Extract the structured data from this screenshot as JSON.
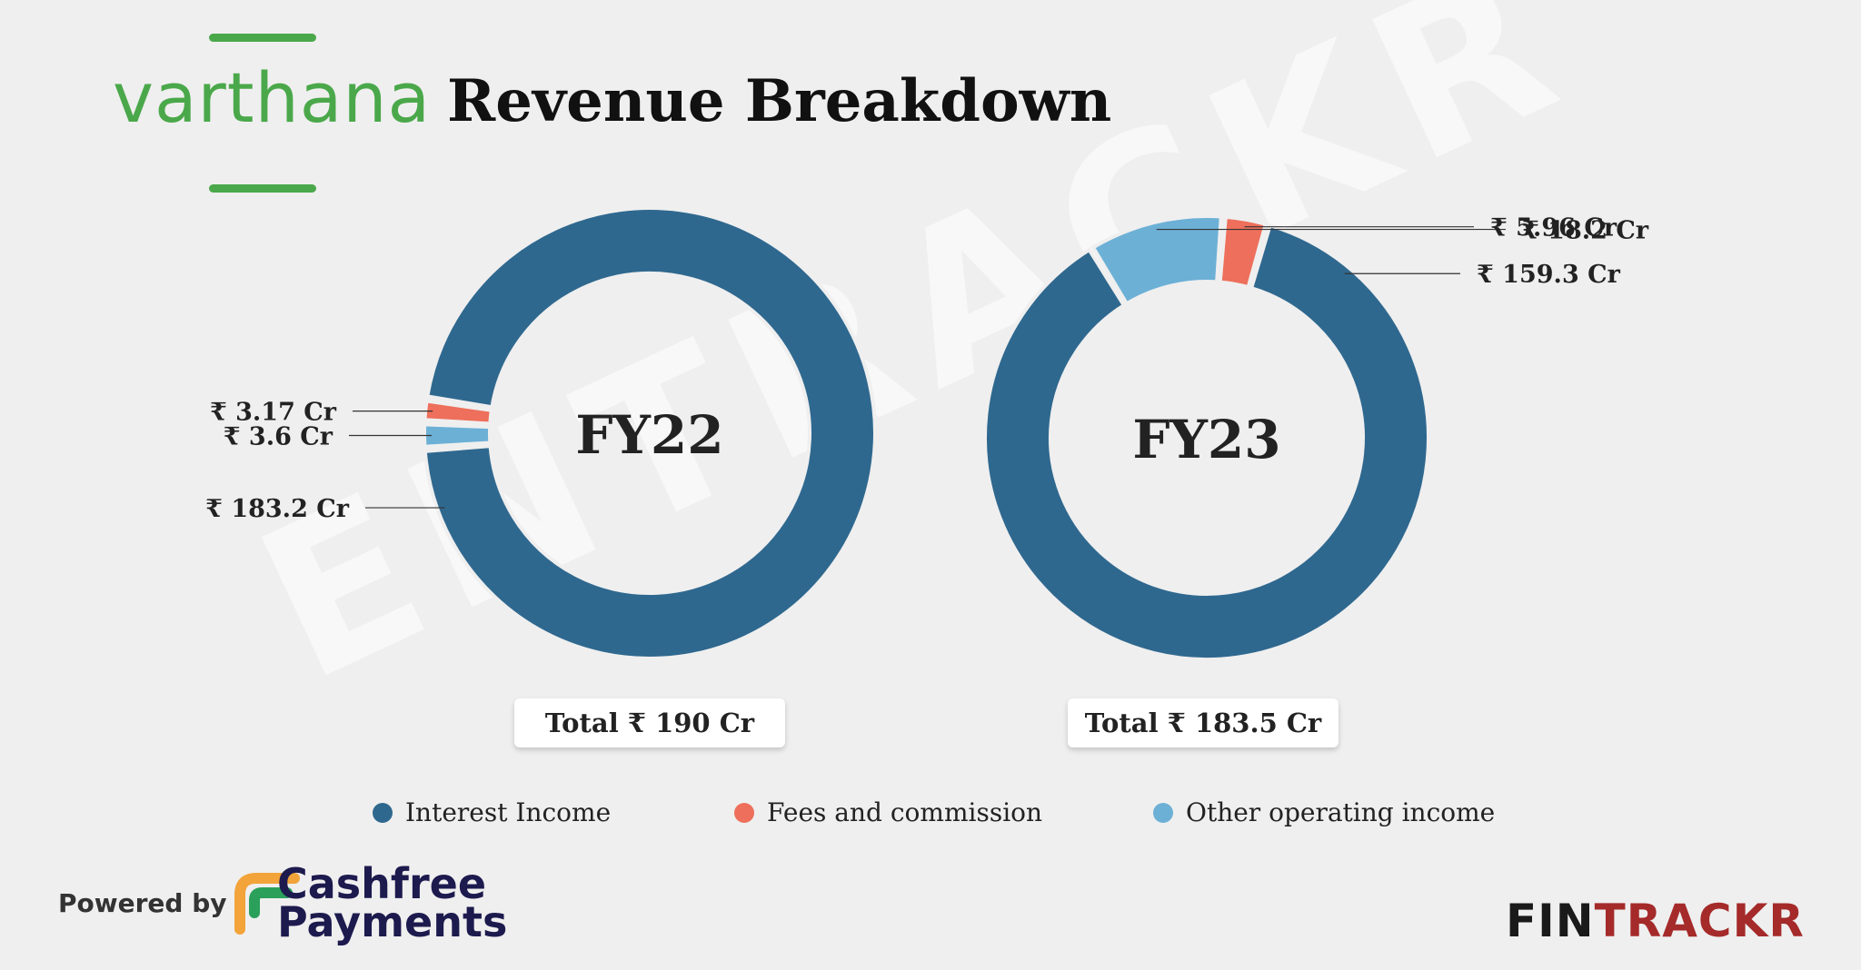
{
  "brand": {
    "name": "varthana",
    "color": "#4aa84a"
  },
  "title": "Revenue Breakdown",
  "watermark": "ENTRACKR",
  "colors": {
    "interest": "#2f688f",
    "fees": "#ee6f5b",
    "other": "#6cb0d6"
  },
  "chart_data": [
    {
      "type": "pie",
      "center_label": "FY22",
      "total_label": "Total ₹ 190 Cr",
      "slices": [
        {
          "name": "Interest Income",
          "value": 183.2,
          "label": "₹ 183.2 Cr",
          "color": "#2f688f"
        },
        {
          "name": "Other operating income",
          "value": 3.6,
          "label": "₹ 3.6 Cr",
          "color": "#6cb0d6"
        },
        {
          "name": "Fees and commission",
          "value": 3.17,
          "label": "₹ 3.17 Cr",
          "color": "#ee6f5b"
        }
      ]
    },
    {
      "type": "pie",
      "center_label": "FY23",
      "total_label": "Total ₹ 183.5 Cr",
      "slices": [
        {
          "name": "Interest Income",
          "value": 159.3,
          "label": "₹ 159.3 Cr",
          "color": "#2f688f"
        },
        {
          "name": "Other operating income",
          "value": 18.2,
          "label": "₹ 18.2 Cr",
          "color": "#6cb0d6"
        },
        {
          "name": "Fees and commission",
          "value": 5.96,
          "label": "₹ 5.96 Cr",
          "color": "#ee6f5b"
        }
      ]
    }
  ],
  "legend": [
    {
      "label": "Interest Income",
      "color": "#2f688f"
    },
    {
      "label": "Fees and commission",
      "color": "#ee6f5b"
    },
    {
      "label": "Other operating income",
      "color": "#6cb0d6"
    }
  ],
  "footer": {
    "powered_by": "Powered by",
    "sponsor_line1": "Cashfree",
    "sponsor_line2": "Payments",
    "logo_part1": "FIN",
    "logo_part2": "TRACKR",
    "logo_color1": "#1a1a1a",
    "logo_color2": "#a52a2a"
  }
}
